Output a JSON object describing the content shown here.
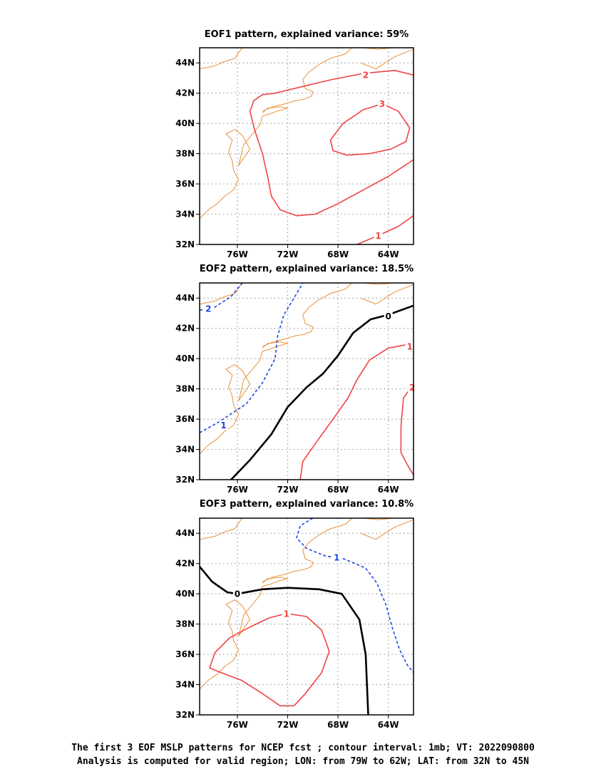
{
  "colors": {
    "positive": "#f04545",
    "negative": "#2046e8",
    "zero": "#000000",
    "coast": "#e8913a",
    "grid": "#999999"
  },
  "chart_data": [
    {
      "type": "contour",
      "title": "EOF1 pattern, explained variance: 59%",
      "xlim": [
        -79,
        -62
      ],
      "ylim": [
        32,
        45
      ],
      "xticks": [
        {
          "v": -76,
          "label": "76W"
        },
        {
          "v": -72,
          "label": "72W"
        },
        {
          "v": -68,
          "label": "68W"
        },
        {
          "v": -64,
          "label": "64W"
        }
      ],
      "yticks": [
        {
          "v": 44,
          "label": "44N"
        },
        {
          "v": 42,
          "label": "42N"
        },
        {
          "v": 40,
          "label": "40N"
        },
        {
          "v": 38,
          "label": "38N"
        },
        {
          "v": 36,
          "label": "36N"
        },
        {
          "v": 34,
          "label": "34N"
        },
        {
          "v": 32,
          "label": "32N"
        }
      ],
      "contours": [
        {
          "level": "2",
          "sign": "pos",
          "label_at": [
            -65.8,
            43.2
          ],
          "points": [
            [
              -62,
              43.2
            ],
            [
              -63.5,
              43.5
            ],
            [
              -66,
              43.3
            ],
            [
              -68.5,
              42.9
            ],
            [
              -71,
              42.4
            ],
            [
              -73,
              42
            ],
            [
              -74,
              41.9
            ],
            [
              -74.7,
              41.5
            ],
            [
              -75,
              40.8
            ],
            [
              -74.6,
              39.5
            ],
            [
              -74,
              38
            ],
            [
              -73.6,
              36.5
            ],
            [
              -73.3,
              35.2
            ],
            [
              -72.6,
              34.3
            ],
            [
              -71.3,
              33.9
            ],
            [
              -69.8,
              34
            ],
            [
              -68,
              34.7
            ],
            [
              -66,
              35.6
            ],
            [
              -64,
              36.5
            ],
            [
              -62,
              37.6
            ]
          ]
        },
        {
          "level": "3",
          "sign": "pos",
          "label_at": [
            -64.5,
            41.3
          ],
          "points": [
            [
              -64.5,
              41.3
            ],
            [
              -63.2,
              40.8
            ],
            [
              -62.3,
              39.7
            ],
            [
              -62.6,
              38.8
            ],
            [
              -63.8,
              38.3
            ],
            [
              -65.5,
              38
            ],
            [
              -67.3,
              37.9
            ],
            [
              -68.4,
              38.2
            ],
            [
              -68.6,
              38.9
            ],
            [
              -67.6,
              40
            ],
            [
              -66,
              40.9
            ],
            [
              -64.5,
              41.3
            ]
          ]
        },
        {
          "level": "1",
          "sign": "pos",
          "label_at": [
            -64.8,
            32.6
          ],
          "points": [
            [
              -66.5,
              32
            ],
            [
              -64.5,
              32.7
            ],
            [
              -63.2,
              33.2
            ],
            [
              -62,
              33.9
            ]
          ]
        }
      ]
    },
    {
      "type": "contour",
      "title": "EOF2 pattern, explained variance: 18.5%",
      "xlim": [
        -79,
        -62
      ],
      "ylim": [
        32,
        45
      ],
      "xticks": [
        {
          "v": -76,
          "label": "76W"
        },
        {
          "v": -72,
          "label": "72W"
        },
        {
          "v": -68,
          "label": "68W"
        },
        {
          "v": -64,
          "label": "64W"
        }
      ],
      "yticks": [
        {
          "v": 44,
          "label": "44N"
        },
        {
          "v": 42,
          "label": "42N"
        },
        {
          "v": 40,
          "label": "40N"
        },
        {
          "v": 38,
          "label": "38N"
        },
        {
          "v": 36,
          "label": "36N"
        },
        {
          "v": 34,
          "label": "34N"
        },
        {
          "v": 32,
          "label": "32N"
        }
      ],
      "contours": [
        {
          "level": "-2",
          "sign": "neg",
          "label_at": [
            -78.3,
            43.3
          ],
          "points": [
            [
              -79,
              43.2
            ],
            [
              -77.8,
              43.4
            ],
            [
              -76.5,
              44.1
            ],
            [
              -75.6,
              45
            ]
          ]
        },
        {
          "level": "-1",
          "sign": "neg",
          "label_at": [
            -77.1,
            35.6
          ],
          "points": [
            [
              -79,
              35.1
            ],
            [
              -77.5,
              35.8
            ],
            [
              -75.3,
              37
            ],
            [
              -74,
              38.4
            ],
            [
              -73,
              40
            ],
            [
              -72.8,
              41.5
            ],
            [
              -72.3,
              42.9
            ],
            [
              -71.5,
              44
            ],
            [
              -70.8,
              45
            ]
          ]
        },
        {
          "level": "0",
          "sign": "zero",
          "label_at": [
            -64,
            42.8
          ],
          "points": [
            [
              -76.5,
              32
            ],
            [
              -75,
              33.3
            ],
            [
              -73.3,
              35
            ],
            [
              -72,
              36.8
            ],
            [
              -70.5,
              38.1
            ],
            [
              -69.2,
              39
            ],
            [
              -68,
              40.2
            ],
            [
              -66.8,
              41.7
            ],
            [
              -65.4,
              42.6
            ],
            [
              -64,
              42.9
            ],
            [
              -62,
              43.5
            ]
          ]
        },
        {
          "level": "1",
          "sign": "pos",
          "label_at": [
            -62.3,
            40.8
          ],
          "points": [
            [
              -71,
              32
            ],
            [
              -70.8,
              33.2
            ],
            [
              -69.7,
              34.5
            ],
            [
              -68.4,
              36
            ],
            [
              -67.2,
              37.4
            ],
            [
              -66.5,
              38.6
            ],
            [
              -65.5,
              39.9
            ],
            [
              -64,
              40.7
            ],
            [
              -62,
              41
            ]
          ]
        },
        {
          "level": "2",
          "sign": "pos",
          "label_at": [
            -62.1,
            38.1
          ],
          "points": [
            [
              -62,
              38.3
            ],
            [
              -62.8,
              37.4
            ],
            [
              -63,
              35.5
            ],
            [
              -63,
              33.8
            ],
            [
              -62.5,
              33
            ],
            [
              -62,
              32.3
            ]
          ]
        }
      ]
    },
    {
      "type": "contour",
      "title": "EOF3 pattern, explained variance: 10.8%",
      "xlim": [
        -79,
        -62
      ],
      "ylim": [
        32,
        45
      ],
      "xticks": [
        {
          "v": -76,
          "label": "76W"
        },
        {
          "v": -72,
          "label": "72W"
        },
        {
          "v": -68,
          "label": "68W"
        },
        {
          "v": -64,
          "label": "64W"
        }
      ],
      "yticks": [
        {
          "v": 44,
          "label": "44N"
        },
        {
          "v": 42,
          "label": "42N"
        },
        {
          "v": 40,
          "label": "40N"
        },
        {
          "v": 38,
          "label": "38N"
        },
        {
          "v": 36,
          "label": "36N"
        },
        {
          "v": 34,
          "label": "34N"
        },
        {
          "v": 32,
          "label": "32N"
        }
      ],
      "contours": [
        {
          "level": "-1",
          "sign": "neg",
          "label_at": [
            -68.1,
            42.4
          ],
          "points": [
            [
              -70,
              45
            ],
            [
              -71,
              44.5
            ],
            [
              -71.3,
              43.7
            ],
            [
              -70.5,
              43
            ],
            [
              -69,
              42.5
            ],
            [
              -67.5,
              42.3
            ],
            [
              -65.8,
              41.7
            ],
            [
              -64.9,
              40.7
            ],
            [
              -64.2,
              39.3
            ],
            [
              -63.7,
              37.8
            ],
            [
              -63.1,
              36.3
            ],
            [
              -62.5,
              35.3
            ],
            [
              -62,
              34.8
            ]
          ]
        },
        {
          "level": "0",
          "sign": "zero",
          "label_at": [
            -76,
            40
          ],
          "points": [
            [
              -79,
              41.8
            ],
            [
              -78,
              40.8
            ],
            [
              -76.8,
              40.1
            ],
            [
              -76,
              40
            ],
            [
              -74,
              40.3
            ],
            [
              -72,
              40.4
            ],
            [
              -69.5,
              40.3
            ],
            [
              -67.7,
              40
            ],
            [
              -66.3,
              38.3
            ],
            [
              -65.8,
              36
            ],
            [
              -65.7,
              34
            ],
            [
              -65.6,
              32
            ]
          ]
        },
        {
          "level": "1",
          "sign": "pos",
          "label_at": [
            -72.1,
            38.7
          ],
          "points": [
            [
              -72.1,
              38.7
            ],
            [
              -70.5,
              38.5
            ],
            [
              -69.3,
              37.6
            ],
            [
              -68.7,
              36.2
            ],
            [
              -69.3,
              34.8
            ],
            [
              -70.6,
              33.4
            ],
            [
              -71.5,
              32.6
            ],
            [
              -72.6,
              32.6
            ],
            [
              -74,
              33.4
            ],
            [
              -75.7,
              34.3
            ],
            [
              -77.3,
              34.8
            ],
            [
              -78.2,
              35.1
            ],
            [
              -77.8,
              36.1
            ],
            [
              -76.6,
              37.1
            ],
            [
              -75,
              37.8
            ],
            [
              -73.5,
              38.4
            ],
            [
              -72.1,
              38.7
            ]
          ]
        }
      ]
    }
  ],
  "caption": {
    "line1": "The first 3 EOF MSLP patterns for NCEP fcst ; contour interval: 1mb; VT: 2022090800",
    "line2": "Analysis is computed for valid region; LON: from 79W to 62W; LAT: from 32N to 45N"
  }
}
